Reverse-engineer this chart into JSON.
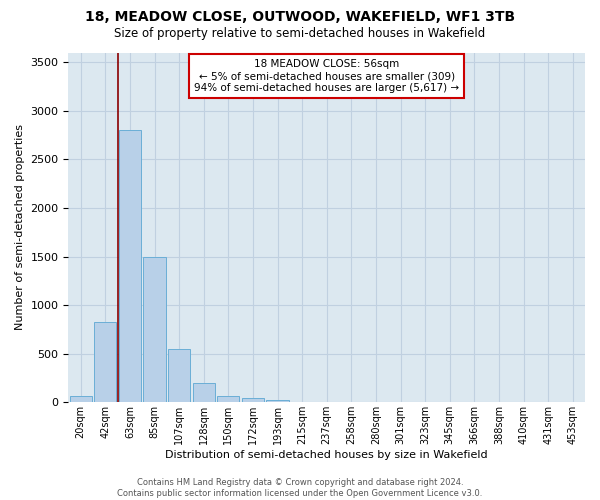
{
  "title": "18, MEADOW CLOSE, OUTWOOD, WAKEFIELD, WF1 3TB",
  "subtitle": "Size of property relative to semi-detached houses in Wakefield",
  "xlabel": "Distribution of semi-detached houses by size in Wakefield",
  "ylabel": "Number of semi-detached properties",
  "bar_labels": [
    "20sqm",
    "42sqm",
    "63sqm",
    "85sqm",
    "107sqm",
    "128sqm",
    "150sqm",
    "172sqm",
    "193sqm",
    "215sqm",
    "237sqm",
    "258sqm",
    "280sqm",
    "301sqm",
    "323sqm",
    "345sqm",
    "366sqm",
    "388sqm",
    "410sqm",
    "431sqm",
    "453sqm"
  ],
  "bar_values": [
    60,
    830,
    2800,
    1500,
    550,
    200,
    60,
    45,
    25,
    0,
    0,
    0,
    0,
    0,
    0,
    0,
    0,
    0,
    0,
    0,
    0
  ],
  "bar_color": "#b8d0e8",
  "bar_edgecolor": "#6baed6",
  "property_line_x": 1.5,
  "property_line_color": "#8b0000",
  "ylim": [
    0,
    3600
  ],
  "annotation_text": "18 MEADOW CLOSE: 56sqm\n← 5% of semi-detached houses are smaller (309)\n94% of semi-detached houses are larger (5,617) →",
  "annotation_box_color": "white",
  "annotation_box_edgecolor": "#cc0000",
  "grid_color": "#c0d0e0",
  "background_color": "#dce8f0",
  "footer_line1": "Contains HM Land Registry data © Crown copyright and database right 2024.",
  "footer_line2": "Contains public sector information licensed under the Open Government Licence v3.0."
}
